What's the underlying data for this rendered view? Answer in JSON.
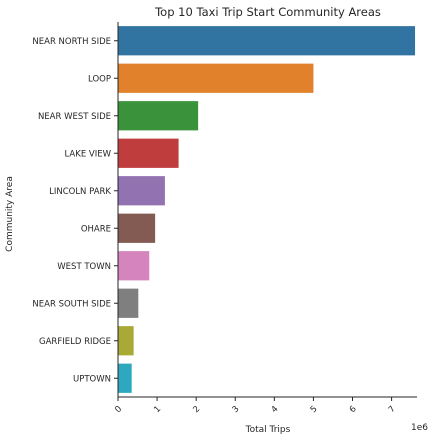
{
  "chart_data": {
    "type": "bar",
    "orientation": "horizontal",
    "title": "Top 10 Taxi Trip Start Community Areas",
    "xlabel": "Total Trips",
    "ylabel": "Community Area",
    "x_offset_label": "1e6",
    "xlim": [
      0,
      7.65
    ],
    "x_ticks": [
      "0",
      "1",
      "2",
      "3",
      "4",
      "5",
      "6",
      "7"
    ],
    "grid": false,
    "categories": [
      "NEAR NORTH SIDE",
      "LOOP",
      "NEAR WEST SIDE",
      "LAKE VIEW",
      "LINCOLN PARK",
      "OHARE",
      "WEST TOWN",
      "NEAR SOUTH SIDE",
      "GARFIELD RIDGE",
      "UPTOWN"
    ],
    "values": [
      7.6,
      5.0,
      2.05,
      1.55,
      1.2,
      0.95,
      0.8,
      0.52,
      0.4,
      0.35
    ],
    "colors": [
      "#3274a1",
      "#e1812c",
      "#3a923a",
      "#c03d3e",
      "#9372b2",
      "#845b53",
      "#d684bd",
      "#7f7f7f",
      "#a9aa35",
      "#2ea8bf"
    ]
  }
}
